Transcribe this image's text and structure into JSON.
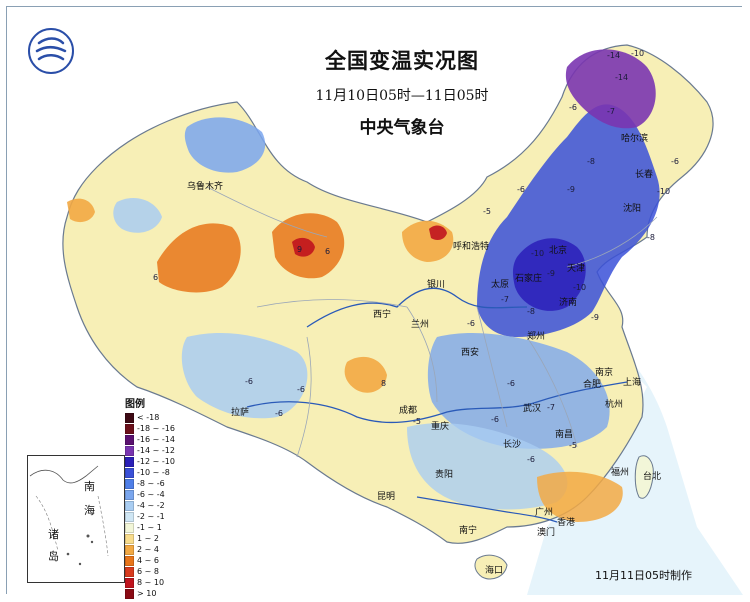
{
  "title": "全国变温实况图",
  "period": "11月10日05时—11日05时",
  "issuer": "中央气象台",
  "footer": "11月11日05时制作",
  "legend": {
    "title": "图例",
    "items": [
      {
        "label": "< -18",
        "color": "#3d0a14"
      },
      {
        "label": "-18 ~ -16",
        "color": "#6b0f1a"
      },
      {
        "label": "-16 ~ -14",
        "color": "#5a1170"
      },
      {
        "label": "-14 ~ -12",
        "color": "#7a35b0"
      },
      {
        "label": "-12 ~ -10",
        "color": "#2a1fb8"
      },
      {
        "label": "-10 ~ -8",
        "color": "#3a50d8"
      },
      {
        "label": "-8 ~ -6",
        "color": "#4f7fe8"
      },
      {
        "label": "-6 ~ -4",
        "color": "#7aa6ee"
      },
      {
        "label": "-4 ~ -2",
        "color": "#a9cdf2"
      },
      {
        "label": "-2 ~ -1",
        "color": "#cfe6f4"
      },
      {
        "label": "-1 ~ 1",
        "color": "#f2f6d8"
      },
      {
        "label": "1 ~ 2",
        "color": "#f8dc8c"
      },
      {
        "label": "2 ~ 4",
        "color": "#f2a944"
      },
      {
        "label": "4 ~ 6",
        "color": "#e8751a"
      },
      {
        "label": "6 ~ 8",
        "color": "#d83b1e"
      },
      {
        "label": "8 ~ 10",
        "color": "#c0141e"
      },
      {
        "label": "> 10",
        "color": "#8a0a14"
      }
    ]
  },
  "inset": {
    "chars": [
      "南",
      "海",
      "诸",
      "岛"
    ]
  },
  "cities": [
    {
      "id": "urumqi",
      "name": "乌鲁木齐"
    },
    {
      "id": "harbin",
      "name": "哈尔滨"
    },
    {
      "id": "changchun",
      "name": "长春"
    },
    {
      "id": "shenyang",
      "name": "沈阳"
    },
    {
      "id": "hohhot",
      "name": "呼和浩特"
    },
    {
      "id": "beijing",
      "name": "北京"
    },
    {
      "id": "tianjin",
      "name": "天津"
    },
    {
      "id": "taiyuan",
      "name": "太原"
    },
    {
      "id": "shijiazhuang",
      "name": "石家庄"
    },
    {
      "id": "jinan",
      "name": "济南"
    },
    {
      "id": "zhengzhou",
      "name": "郑州"
    },
    {
      "id": "yinchuan",
      "name": "银川"
    },
    {
      "id": "xining",
      "name": "西宁"
    },
    {
      "id": "lanzhou",
      "name": "兰州"
    },
    {
      "id": "xian",
      "name": "西安"
    },
    {
      "id": "hefei",
      "name": "合肥"
    },
    {
      "id": "nanjing",
      "name": "南京"
    },
    {
      "id": "shanghai",
      "name": "上海"
    },
    {
      "id": "hangzhou",
      "name": "杭州"
    },
    {
      "id": "wuhan",
      "name": "武汉"
    },
    {
      "id": "nanchang",
      "name": "南昌"
    },
    {
      "id": "changsha",
      "name": "长沙"
    },
    {
      "id": "chengdu",
      "name": "成都"
    },
    {
      "id": "chongqing",
      "name": "重庆"
    },
    {
      "id": "lhasa",
      "name": "拉萨"
    },
    {
      "id": "guiyang",
      "name": "贵阳"
    },
    {
      "id": "kunming",
      "name": "昆明"
    },
    {
      "id": "nanning",
      "name": "南宁"
    },
    {
      "id": "guangzhou",
      "name": "广州"
    },
    {
      "id": "fuzhou",
      "name": "福州"
    },
    {
      "id": "taipei",
      "name": "台北"
    },
    {
      "id": "haikou",
      "name": "海口"
    },
    {
      "id": "hongkong",
      "name": "香港"
    },
    {
      "id": "macau",
      "name": "澳门"
    }
  ],
  "values": [
    {
      "id": "v1",
      "text": "-14"
    },
    {
      "id": "v2",
      "text": "-10"
    },
    {
      "id": "v3",
      "text": "-14"
    },
    {
      "id": "v4",
      "text": "-6"
    },
    {
      "id": "v5",
      "text": "-7"
    },
    {
      "id": "v6",
      "text": "-8"
    },
    {
      "id": "v7",
      "text": "-9"
    },
    {
      "id": "v8",
      "text": "-6"
    },
    {
      "id": "v9",
      "text": "-10"
    },
    {
      "id": "v10",
      "text": "-9"
    },
    {
      "id": "v11",
      "text": "-7"
    },
    {
      "id": "v12",
      "text": "-8"
    },
    {
      "id": "v13",
      "text": "-10"
    },
    {
      "id": "v14",
      "text": "-9"
    },
    {
      "id": "v15",
      "text": "-6"
    },
    {
      "id": "v16",
      "text": "-5"
    },
    {
      "id": "v17",
      "text": "6"
    },
    {
      "id": "v18",
      "text": "9"
    },
    {
      "id": "v19",
      "text": "6"
    },
    {
      "id": "v20",
      "text": "-6"
    },
    {
      "id": "v21",
      "text": "-6"
    },
    {
      "id": "v22",
      "text": "-6"
    },
    {
      "id": "v23",
      "text": "-6"
    },
    {
      "id": "v24",
      "text": "-7"
    },
    {
      "id": "v25",
      "text": "-6"
    },
    {
      "id": "v26",
      "text": "-5"
    },
    {
      "id": "v27",
      "text": "-6"
    },
    {
      "id": "v28",
      "text": "-8"
    },
    {
      "id": "v29",
      "text": "-10"
    },
    {
      "id": "v30",
      "text": "-6"
    },
    {
      "id": "v31",
      "text": "-5"
    },
    {
      "id": "v32",
      "text": "8"
    }
  ]
}
